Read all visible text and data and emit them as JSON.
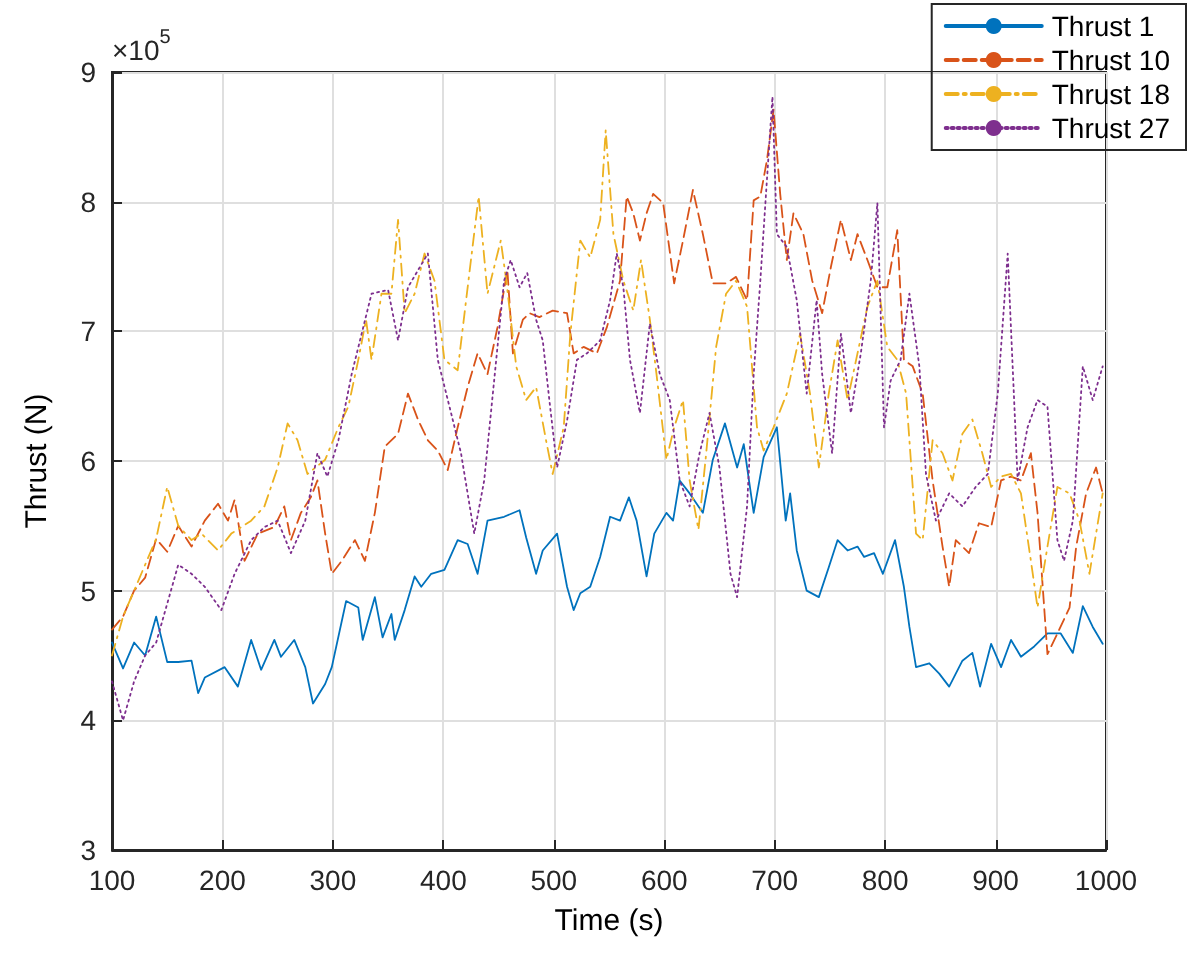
{
  "chart_data": {
    "type": "line",
    "xlabel": "Time (s)",
    "ylabel": "Thrust (N)",
    "annotations": [
      "×10$^{5}$"
    ],
    "xlim": [
      100,
      1000
    ],
    "xticks": [
      100,
      200,
      300,
      400,
      500,
      600,
      700,
      800,
      900,
      1000
    ],
    "ylim": [
      3,
      9
    ],
    "yticks": [
      3,
      4,
      5,
      6,
      7,
      8,
      9
    ],
    "grid": true,
    "legend": "top right",
    "marker": "none",
    "series": [
      {
        "name": "Thrust 1",
        "color": "#0072bd",
        "line_style": "solid",
        "x": [
          100,
          110,
          120,
          130,
          140,
          150,
          160,
          172,
          178,
          184,
          202,
          214,
          226,
          235,
          247,
          253,
          265,
          275,
          282,
          293,
          299,
          312,
          323,
          327,
          338,
          345,
          353,
          356,
          365,
          374,
          380,
          389,
          401,
          413,
          422,
          431,
          440,
          455,
          469,
          475,
          484,
          490,
          503,
          512,
          518,
          524,
          533,
          542,
          551,
          560,
          568,
          575,
          584,
          591,
          602,
          608,
          614,
          623,
          635,
          644,
          655,
          666,
          672,
          681,
          690,
          702,
          710,
          714,
          720,
          729,
          740,
          749,
          757,
          766,
          775,
          781,
          790,
          798,
          809,
          817,
          822,
          828,
          840,
          849,
          858,
          870,
          879,
          886,
          896,
          905,
          914,
          923,
          935,
          947,
          959,
          970,
          979,
          988,
          997
        ],
        "values": [
          4.6,
          4.4,
          4.6,
          4.5,
          4.8,
          4.45,
          4.45,
          4.46,
          4.21,
          4.33,
          4.41,
          4.26,
          4.62,
          4.39,
          4.62,
          4.49,
          4.62,
          4.41,
          4.13,
          4.28,
          4.41,
          4.92,
          4.87,
          4.62,
          4.95,
          4.64,
          4.82,
          4.62,
          4.85,
          5.11,
          5.03,
          5.13,
          5.16,
          5.39,
          5.36,
          5.13,
          5.54,
          5.57,
          5.62,
          5.41,
          5.13,
          5.31,
          5.44,
          5.03,
          4.85,
          4.98,
          5.03,
          5.26,
          5.57,
          5.54,
          5.72,
          5.54,
          5.11,
          5.44,
          5.6,
          5.54,
          5.85,
          5.75,
          5.6,
          6.01,
          6.29,
          5.95,
          6.13,
          5.6,
          6.03,
          6.26,
          5.54,
          5.75,
          5.31,
          5.0,
          4.95,
          5.18,
          5.39,
          5.31,
          5.34,
          5.26,
          5.29,
          5.13,
          5.39,
          5.03,
          4.72,
          4.41,
          4.44,
          4.36,
          4.26,
          4.46,
          4.52,
          4.26,
          4.59,
          4.41,
          4.62,
          4.49,
          4.57,
          4.67,
          4.67,
          4.52,
          4.88,
          4.72,
          4.59
        ]
      },
      {
        "name": "Thrust 10",
        "color": "#d95319",
        "line_style": "dashed",
        "x": [
          100,
          110,
          120,
          130,
          140,
          150,
          160,
          172,
          184,
          196,
          205,
          211,
          220,
          232,
          247,
          256,
          262,
          271,
          280,
          286,
          293,
          299,
          308,
          320,
          329,
          338,
          347,
          359,
          368,
          377,
          386,
          395,
          404,
          413,
          422,
          431,
          440,
          449,
          458,
          463,
          472,
          478,
          487,
          499,
          512,
          518,
          527,
          539,
          548,
          560,
          566,
          572,
          578,
          584,
          590,
          599,
          609,
          617,
          626,
          635,
          644,
          656,
          665,
          675,
          681,
          687,
          693,
          699,
          705,
          711,
          717,
          726,
          734,
          743,
          751,
          760,
          769,
          775,
          784,
          793,
          802,
          811,
          817,
          825,
          834,
          843,
          852,
          858,
          864,
          876,
          885,
          896,
          905,
          914,
          923,
          932,
          938,
          947,
          956,
          967,
          973,
          982,
          991,
          997
        ],
        "values": [
          4.7,
          4.8,
          5.0,
          5.1,
          5.4,
          5.3,
          5.5,
          5.34,
          5.54,
          5.67,
          5.54,
          5.7,
          5.23,
          5.44,
          5.49,
          5.65,
          5.39,
          5.6,
          5.72,
          5.85,
          5.44,
          5.13,
          5.23,
          5.39,
          5.23,
          5.6,
          6.11,
          6.21,
          6.52,
          6.32,
          6.16,
          6.08,
          5.93,
          6.26,
          6.57,
          6.83,
          6.67,
          7.03,
          7.47,
          6.83,
          7.09,
          7.14,
          7.11,
          7.16,
          7.14,
          6.83,
          6.88,
          6.83,
          7.03,
          7.39,
          8.04,
          7.91,
          7.7,
          7.91,
          8.06,
          7.99,
          7.37,
          7.7,
          8.09,
          7.75,
          7.37,
          7.37,
          7.42,
          7.24,
          8.01,
          8.04,
          8.32,
          8.71,
          8.06,
          7.55,
          7.91,
          7.75,
          7.39,
          7.14,
          7.5,
          7.86,
          7.55,
          7.75,
          7.55,
          7.34,
          7.34,
          7.78,
          6.78,
          6.73,
          6.52,
          5.85,
          5.34,
          5.03,
          5.39,
          5.29,
          5.52,
          5.49,
          5.85,
          5.88,
          5.85,
          6.06,
          5.6,
          4.51,
          4.67,
          4.87,
          5.34,
          5.75,
          5.95,
          5.75
        ]
      },
      {
        "name": "Thrust 18",
        "color": "#edb120",
        "line_style": "dashdot",
        "x": [
          100,
          110,
          120,
          130,
          140,
          150,
          160,
          172,
          181,
          196,
          208,
          226,
          238,
          250,
          259,
          268,
          277,
          293,
          305,
          314,
          323,
          330,
          335,
          344,
          353,
          359,
          365,
          374,
          383,
          392,
          401,
          413,
          425,
          432,
          440,
          452,
          457,
          466,
          475,
          484,
          493,
          499,
          509,
          515,
          524,
          533,
          542,
          547,
          554,
          563,
          572,
          579,
          587,
          593,
          602,
          609,
          617,
          623,
          631,
          638,
          647,
          656,
          665,
          675,
          684,
          690,
          699,
          711,
          723,
          732,
          740,
          749,
          757,
          766,
          775,
          784,
          793,
          802,
          811,
          819,
          828,
          834,
          843,
          852,
          861,
          870,
          879,
          888,
          896,
          905,
          914,
          923,
          932,
          938,
          947,
          956,
          967,
          976,
          985,
          991,
          997
        ],
        "values": [
          4.5,
          4.8,
          5.0,
          5.2,
          5.4,
          5.8,
          5.5,
          5.39,
          5.44,
          5.31,
          5.44,
          5.54,
          5.65,
          5.95,
          6.29,
          6.16,
          5.9,
          6.01,
          6.26,
          6.42,
          6.78,
          7.09,
          6.78,
          7.29,
          7.29,
          7.86,
          7.14,
          7.29,
          7.6,
          7.39,
          6.78,
          6.7,
          7.55,
          8.04,
          7.29,
          7.7,
          7.39,
          6.73,
          6.47,
          6.57,
          6.16,
          5.9,
          6.26,
          6.98,
          7.7,
          7.57,
          7.86,
          8.55,
          7.75,
          7.39,
          7.16,
          7.55,
          7.09,
          6.67,
          6.01,
          6.26,
          6.47,
          5.85,
          5.47,
          6.06,
          6.88,
          7.29,
          7.39,
          7.19,
          6.26,
          6.08,
          6.26,
          6.52,
          6.98,
          6.52,
          5.95,
          6.52,
          6.93,
          6.47,
          6.83,
          7.19,
          7.39,
          6.88,
          6.78,
          6.52,
          5.44,
          5.39,
          6.16,
          6.06,
          5.85,
          6.21,
          6.32,
          6.06,
          5.8,
          5.88,
          5.9,
          5.75,
          5.23,
          4.87,
          5.34,
          5.8,
          5.75,
          5.54,
          5.13,
          5.44,
          5.75
        ]
      },
      {
        "name": "Thrust 27",
        "color": "#7e2f8e",
        "line_style": "dotted",
        "x": [
          100,
          110,
          120,
          130,
          140,
          150,
          160,
          172,
          184,
          199,
          211,
          226,
          238,
          250,
          262,
          275,
          286,
          295,
          305,
          317,
          326,
          335,
          350,
          359,
          368,
          377,
          386,
          395,
          407,
          416,
          428,
          437,
          446,
          455,
          461,
          469,
          476,
          484,
          490,
          496,
          503,
          512,
          521,
          530,
          542,
          551,
          557,
          563,
          569,
          578,
          587,
          596,
          605,
          614,
          623,
          632,
          641,
          650,
          660,
          666,
          675,
          681,
          687,
          693,
          698,
          702,
          711,
          720,
          729,
          738,
          743,
          752,
          760,
          769,
          778,
          787,
          793,
          799,
          805,
          814,
          822,
          831,
          837,
          846,
          858,
          870,
          882,
          893,
          902,
          911,
          920,
          929,
          938,
          947,
          956,
          962,
          970,
          979,
          988,
          997
        ],
        "values": [
          4.3,
          4.0,
          4.3,
          4.5,
          4.6,
          4.9,
          5.2,
          5.13,
          5.03,
          4.85,
          5.13,
          5.39,
          5.49,
          5.54,
          5.29,
          5.54,
          6.06,
          5.88,
          6.16,
          6.67,
          6.98,
          7.29,
          7.32,
          6.93,
          7.34,
          7.47,
          7.6,
          6.78,
          6.37,
          6.06,
          5.44,
          5.85,
          6.62,
          7.39,
          7.55,
          7.34,
          7.45,
          7.09,
          6.93,
          6.47,
          5.95,
          6.31,
          6.78,
          6.83,
          6.93,
          7.24,
          7.6,
          7.34,
          6.78,
          6.37,
          7.06,
          6.67,
          6.47,
          5.85,
          5.65,
          6.06,
          6.37,
          5.95,
          5.13,
          4.95,
          5.65,
          6.67,
          7.39,
          8.17,
          8.81,
          7.75,
          7.65,
          7.24,
          6.52,
          7.24,
          6.67,
          6.06,
          6.98,
          6.37,
          6.83,
          7.39,
          7.99,
          6.26,
          6.62,
          6.78,
          7.29,
          6.73,
          5.9,
          5.54,
          5.75,
          5.65,
          5.8,
          5.9,
          6.52,
          7.6,
          5.85,
          6.26,
          6.47,
          6.42,
          5.39,
          5.23,
          5.54,
          6.73,
          6.47,
          6.73
        ]
      }
    ]
  }
}
